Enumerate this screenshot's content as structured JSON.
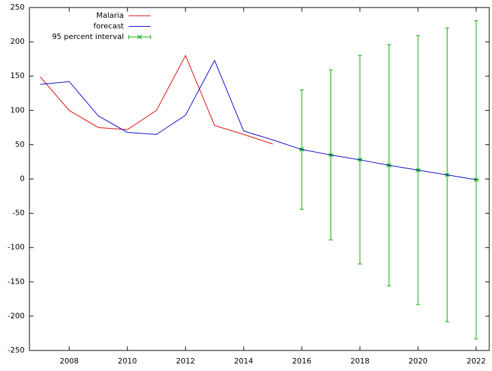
{
  "chart_data": {
    "type": "line",
    "xlim": [
      2006.63,
      2022.45
    ],
    "ylim": [
      -250,
      250
    ],
    "xticks": [
      2008,
      2010,
      2012,
      2014,
      2016,
      2018,
      2020,
      2022
    ],
    "yticks": [
      -250,
      -200,
      -150,
      -100,
      -50,
      0,
      50,
      100,
      150,
      200,
      250
    ],
    "legend": "top-left",
    "series": [
      {
        "name": "Malaria",
        "color": "#dd0000",
        "style": "line",
        "x": [
          2007,
          2008,
          2009,
          2010,
          2011,
          2012,
          2013,
          2014,
          2015
        ],
        "values": [
          149,
          100,
          75,
          72,
          100,
          180,
          78,
          65,
          51
        ]
      },
      {
        "name": "forecast",
        "color": "#0000cc",
        "style": "line",
        "x": [
          2007,
          2008,
          2009,
          2010,
          2011,
          2012,
          2013,
          2014,
          2015,
          2016,
          2017,
          2018,
          2019,
          2020,
          2021,
          2022
        ],
        "values": [
          138,
          142,
          92,
          68,
          65,
          93,
          173,
          70,
          57,
          43,
          35,
          28,
          20,
          13,
          6,
          -1
        ]
      },
      {
        "name": "95 percent interval",
        "color": "#00aa00",
        "style": "errorbar",
        "x": [
          2016,
          2017,
          2018,
          2019,
          2020,
          2021,
          2022
        ],
        "values": [
          43,
          35,
          28,
          20,
          13,
          6,
          -1
        ],
        "errors": [
          87,
          124,
          152,
          176,
          196,
          214,
          232
        ]
      }
    ]
  }
}
